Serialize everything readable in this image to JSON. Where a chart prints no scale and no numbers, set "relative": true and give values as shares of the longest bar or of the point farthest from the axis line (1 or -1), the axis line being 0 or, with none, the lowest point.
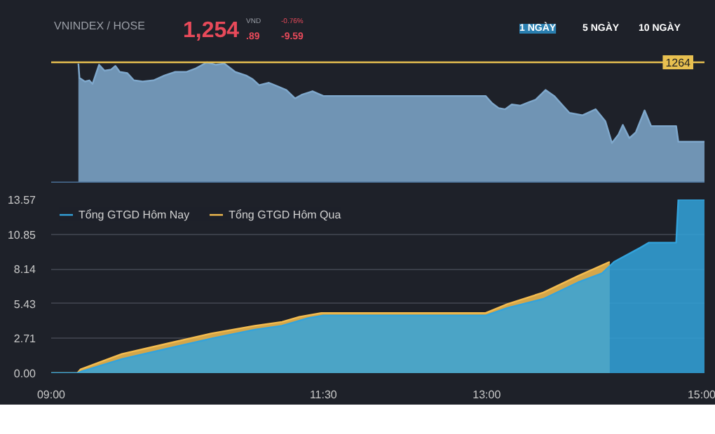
{
  "chart_data": [
    {
      "type": "area",
      "relative": true,
      "title": "VNINDEX / HOSE",
      "annotations": [
        "1,254",
        ".89",
        "VND",
        "-9.59",
        "-0.76%",
        "1 NGÀY",
        "5 NGÀY",
        "10 NGÀY",
        {
          "text": "1264",
          "x": 15,
          "y": 1
        }
      ],
      "xlim": [
        9,
        15
      ],
      "tick_labels": false,
      "ref_lines": [
        {
          "axis": "y",
          "value": 1,
          "color": "#e8c050"
        }
      ],
      "series": [
        {
          "color": "#7fa8cc",
          "x": [
            9.25,
            9.26,
            9.31,
            9.35,
            9.38,
            9.44,
            9.49,
            9.55,
            9.59,
            9.63,
            9.7,
            9.76,
            9.84,
            9.94,
            10.04,
            10.14,
            10.24,
            10.33,
            10.43,
            10.51,
            10.59,
            10.69,
            10.79,
            10.85,
            10.91,
            11.0,
            11.08,
            11.16,
            11.24,
            11.3,
            11.4,
            11.5,
            12.99,
            13.05,
            13.11,
            13.17,
            13.23,
            13.31,
            13.39,
            13.45,
            13.54,
            13.62,
            13.68,
            13.76,
            13.88,
            14.0,
            14.09,
            14.15,
            14.21,
            14.25,
            14.31,
            14.37,
            14.45,
            14.51,
            14.74,
            14.76,
            15.0
          ],
          "values": [
            0.99,
            0.87,
            0.84,
            0.85,
            0.82,
            0.98,
            0.93,
            0.94,
            0.97,
            0.92,
            0.91,
            0.85,
            0.84,
            0.85,
            0.89,
            0.92,
            0.92,
            0.95,
            1.0,
            0.98,
            0.99,
            0.92,
            0.89,
            0.86,
            0.81,
            0.83,
            0.8,
            0.77,
            0.7,
            0.73,
            0.76,
            0.72,
            0.72,
            0.66,
            0.62,
            0.61,
            0.65,
            0.64,
            0.67,
            0.69,
            0.77,
            0.72,
            0.66,
            0.58,
            0.56,
            0.61,
            0.51,
            0.33,
            0.4,
            0.48,
            0.37,
            0.42,
            0.6,
            0.47,
            0.47,
            0.34,
            0.34
          ]
        }
      ]
    },
    {
      "type": "area",
      "legend": "top left",
      "grid": "y",
      "xlim": [
        9,
        15
      ],
      "ylim": [
        0,
        13.57
      ],
      "xticks": [
        {
          "value": 9,
          "label": "09:00"
        },
        {
          "value": 11.5,
          "label": "11:30"
        },
        {
          "value": 13,
          "label": "13:00"
        },
        {
          "value": 15,
          "label": "15:00"
        }
      ],
      "yticks": [
        {
          "value": 0,
          "label": "0.00"
        },
        2.71,
        5.43,
        8.14,
        10.85,
        13.57
      ],
      "series": [
        {
          "name": "Tổng GTGD Hôm Qua",
          "color": "#f5bd4f",
          "x": [
            9.0,
            9.24,
            9.27,
            9.65,
            10.06,
            10.47,
            10.87,
            11.12,
            11.28,
            11.48,
            12.99,
            13.19,
            13.52,
            13.84,
            14.13
          ],
          "values": [
            0,
            0,
            0.3,
            1.5,
            2.3,
            3.1,
            3.7,
            4.0,
            4.4,
            4.7,
            4.7,
            5.4,
            6.3,
            7.6,
            8.7
          ]
        },
        {
          "name": "Tổng GTGD Hôm Nay",
          "color": "#33a3dc",
          "x": [
            9.0,
            9.24,
            9.27,
            9.65,
            10.06,
            10.47,
            10.87,
            11.12,
            11.36,
            11.5,
            12.99,
            13.19,
            13.52,
            13.84,
            14.06,
            14.17,
            14.41,
            14.49,
            14.74,
            14.76,
            15.0
          ],
          "values": [
            0,
            0,
            0.1,
            1.1,
            1.9,
            2.7,
            3.4,
            3.7,
            4.3,
            4.5,
            4.5,
            5.1,
            5.8,
            7.1,
            7.8,
            8.7,
            9.8,
            10.2,
            10.2,
            13.57,
            13.57
          ]
        }
      ]
    }
  ]
}
